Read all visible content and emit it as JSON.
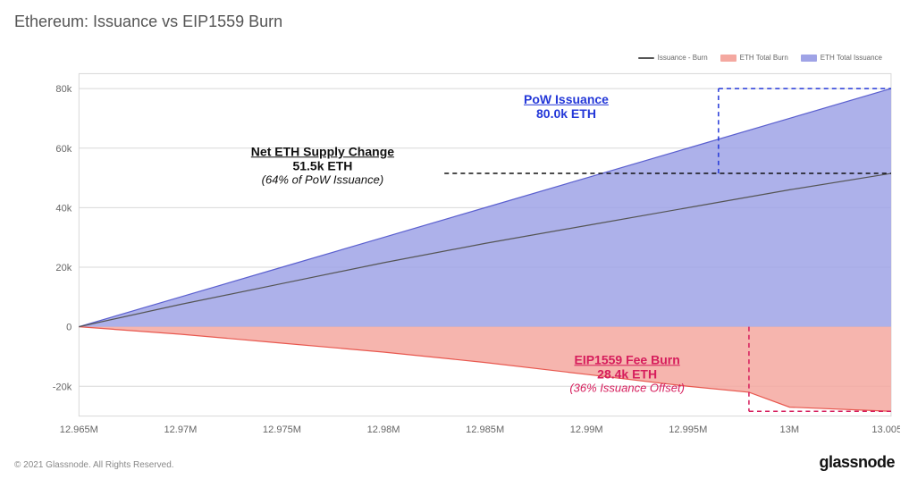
{
  "title": "Ethereum: Issuance vs EIP1559 Burn",
  "footer_copyright": "© 2021 Glassnode. All Rights Reserved.",
  "footer_brand": "glassnode",
  "legend": {
    "issuance_minus_burn": "Issuance - Burn",
    "total_burn": "ETH Total Burn",
    "total_issuance": "ETH Total Issuance"
  },
  "colors": {
    "issuance_fill": "#9fa3e6",
    "issuance_line": "#5b60cf",
    "burn_fill": "#f4a8a0",
    "burn_line": "#e8584f",
    "net_line": "#555555",
    "grid": "#d8d8d8",
    "axis_text": "#666666",
    "annot_black": "#111111",
    "annot_blue": "#2438d8",
    "annot_red": "#d61d5c"
  },
  "chart": {
    "type": "area",
    "background_color": "#ffffff",
    "xlim": [
      12.965,
      13.005
    ],
    "ylim": [
      -30,
      85
    ],
    "xtick_step": 0.005,
    "xticks": [
      "12.965M",
      "12.97M",
      "12.975M",
      "12.98M",
      "12.985M",
      "12.99M",
      "12.995M",
      "13M",
      "13.005M"
    ],
    "yticks": [
      -20,
      0,
      20,
      40,
      60,
      80
    ],
    "ytick_labels": [
      "-20k",
      "0",
      "20k",
      "40k",
      "60k",
      "80k"
    ],
    "series": {
      "issuance": [
        {
          "x": 12.965,
          "y": 0
        },
        {
          "x": 12.97,
          "y": 10
        },
        {
          "x": 12.975,
          "y": 20
        },
        {
          "x": 12.98,
          "y": 30
        },
        {
          "x": 12.985,
          "y": 40
        },
        {
          "x": 12.99,
          "y": 50
        },
        {
          "x": 12.995,
          "y": 60
        },
        {
          "x": 13.0,
          "y": 70
        },
        {
          "x": 13.005,
          "y": 80
        }
      ],
      "burn": [
        {
          "x": 12.965,
          "y": 0
        },
        {
          "x": 12.97,
          "y": -2.5
        },
        {
          "x": 12.975,
          "y": -5.5
        },
        {
          "x": 12.98,
          "y": -8.5
        },
        {
          "x": 12.985,
          "y": -12
        },
        {
          "x": 12.99,
          "y": -16
        },
        {
          "x": 12.995,
          "y": -20
        },
        {
          "x": 12.998,
          "y": -22
        },
        {
          "x": 13.0,
          "y": -27
        },
        {
          "x": 13.005,
          "y": -28.4
        }
      ],
      "net": [
        {
          "x": 12.965,
          "y": 0
        },
        {
          "x": 12.97,
          "y": 7.5
        },
        {
          "x": 12.975,
          "y": 14.5
        },
        {
          "x": 12.98,
          "y": 21.5
        },
        {
          "x": 12.985,
          "y": 28
        },
        {
          "x": 12.99,
          "y": 34
        },
        {
          "x": 12.995,
          "y": 40
        },
        {
          "x": 13.0,
          "y": 46
        },
        {
          "x": 13.005,
          "y": 51.5
        }
      ]
    },
    "callout_lines": {
      "net_y": 51.5,
      "net_x_start": 12.983,
      "pow_y": 80,
      "pow_x_start": 12.9965,
      "burn_y": -28.4,
      "burn_x_start": 12.998
    }
  },
  "annotations": {
    "net": {
      "line1": "Net ETH Supply Change",
      "line2": "51.5k ETH",
      "line3": "(64% of PoW Issuance)"
    },
    "pow": {
      "line1": "PoW Issuance",
      "line2": "80.0k ETH",
      "line3": ""
    },
    "burn": {
      "line1": "EIP1559 Fee Burn",
      "line2": "28.4k ETH",
      "line3": "(36% Issuance Offset)"
    }
  }
}
